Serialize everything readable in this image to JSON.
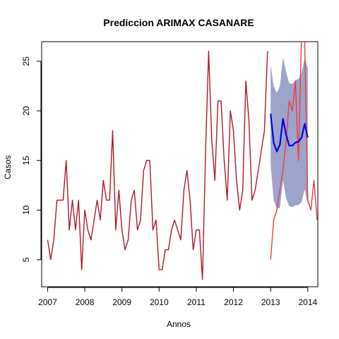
{
  "chart_data": {
    "type": "line",
    "title": "Prediccion ARIMAX CASANARE",
    "xlabel": "Annos",
    "ylabel": "Casos",
    "xlim": [
      2006.84,
      2014.27
    ],
    "ylim": [
      2.28,
      26.97
    ],
    "xticks": [
      2007,
      2008,
      2009,
      2010,
      2011,
      2012,
      2013,
      2014
    ],
    "xtick_labels": [
      "2007",
      "2008",
      "2009",
      "2010",
      "2011",
      "2012",
      "2013",
      "2014"
    ],
    "yticks": [
      5,
      10,
      15,
      20,
      25
    ],
    "ytick_labels": [
      "5",
      "10",
      "15",
      "20",
      "25"
    ],
    "grid": false,
    "series": [
      {
        "role": "observed",
        "color": "#b2182b",
        "x": [
          2007.0,
          2007.083,
          2007.167,
          2007.25,
          2007.333,
          2007.417,
          2007.5,
          2007.583,
          2007.667,
          2007.75,
          2007.833,
          2007.917,
          2008.0,
          2008.083,
          2008.167,
          2008.25,
          2008.333,
          2008.417,
          2008.5,
          2008.583,
          2008.667,
          2008.75,
          2008.833,
          2008.917,
          2009.0,
          2009.083,
          2009.167,
          2009.25,
          2009.333,
          2009.417,
          2009.5,
          2009.583,
          2009.667,
          2009.75,
          2009.833,
          2009.917,
          2010.0,
          2010.083,
          2010.167,
          2010.25,
          2010.333,
          2010.417,
          2010.5,
          2010.583,
          2010.667,
          2010.75,
          2010.833,
          2010.917,
          2011.0,
          2011.083,
          2011.167,
          2011.25,
          2011.333,
          2011.417,
          2011.5,
          2011.583,
          2011.667,
          2011.75,
          2011.833,
          2011.917,
          2012.0,
          2012.083,
          2012.167,
          2012.25,
          2012.333,
          2012.417,
          2012.5,
          2012.583,
          2012.667,
          2012.75,
          2012.833,
          2012.917
        ],
        "values": [
          7,
          5,
          7,
          11,
          11,
          11,
          15,
          8,
          11,
          8,
          11,
          4,
          10,
          8,
          7,
          9,
          11,
          9,
          13,
          11,
          11,
          18,
          8,
          12,
          8,
          6,
          7,
          11,
          12,
          8,
          9,
          14,
          15,
          15,
          8,
          9,
          4,
          4,
          6,
          6,
          8,
          9,
          8,
          7,
          12,
          14,
          11,
          6,
          8,
          8,
          3,
          16,
          26,
          17,
          13,
          21,
          21,
          15,
          11,
          20,
          18,
          13,
          10,
          12,
          23,
          19,
          11,
          12,
          14,
          16,
          18,
          26
        ]
      },
      {
        "role": "actual-after-2013",
        "color": "#f03b3b",
        "x": [
          2013.0,
          2013.083,
          2013.167,
          2013.25,
          2013.333,
          2013.417,
          2013.5,
          2013.583,
          2013.667,
          2013.75,
          2013.833,
          2013.917,
          2014.0,
          2014.083,
          2014.167,
          2014.25
        ],
        "values": [
          5,
          9,
          10,
          12,
          14,
          17,
          21,
          20,
          23,
          15,
          28,
          27,
          11,
          10,
          13,
          9
        ]
      },
      {
        "role": "forecast",
        "color": "#0000ee",
        "x": [
          2013.0,
          2013.083,
          2013.167,
          2013.25,
          2013.333,
          2013.417,
          2013.5,
          2013.583,
          2013.667,
          2013.75,
          2013.833,
          2013.917,
          2014.0
        ],
        "values": [
          19.7,
          16.8,
          15.9,
          16.6,
          19.2,
          17.6,
          16.5,
          16.5,
          16.8,
          16.9,
          17.3,
          18.7,
          17.3
        ],
        "lower": [
          14.6,
          11.0,
          10.2,
          10.2,
          13.0,
          11.2,
          10.4,
          10.3,
          10.5,
          10.5,
          10.8,
          12.1,
          10.5
        ],
        "upper": [
          24.7,
          22.5,
          21.8,
          22.5,
          25.4,
          23.9,
          22.8,
          22.7,
          23.1,
          23.2,
          23.8,
          25.3,
          24.3
        ]
      }
    ],
    "band_color": "#9da3c9"
  }
}
